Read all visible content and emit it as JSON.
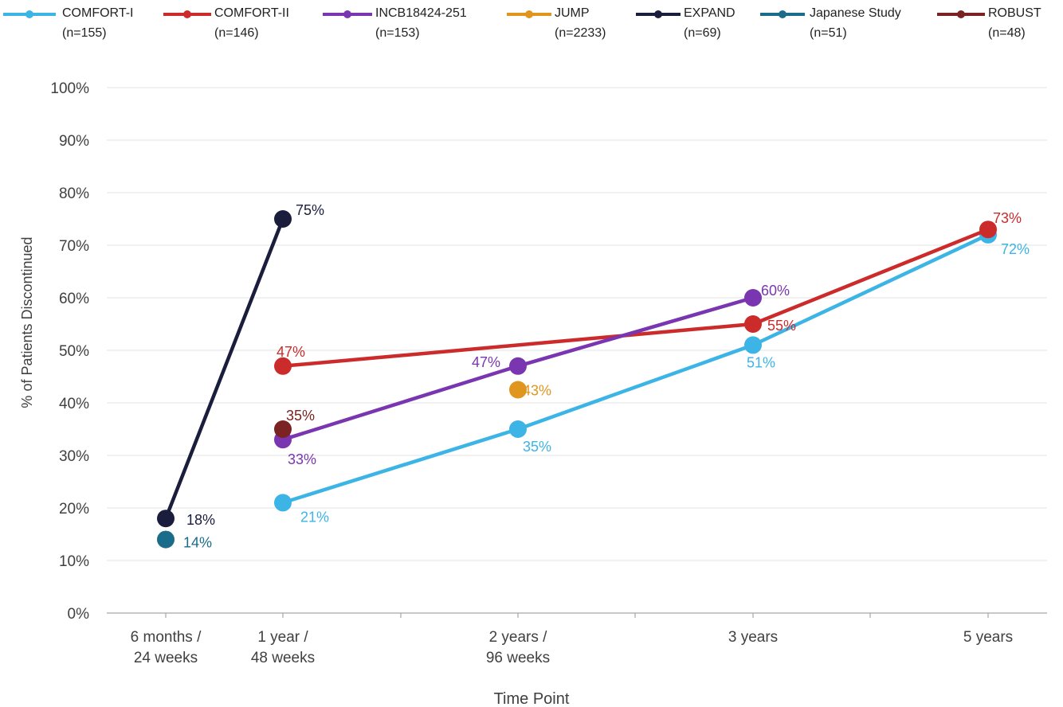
{
  "chart_data": {
    "type": "line",
    "xlabel": "Time Point",
    "ylabel": "% of Patients Discontinued",
    "ylim": [
      0,
      100
    ],
    "yticks": [
      "0%",
      "10%",
      "20%",
      "30%",
      "40%",
      "50%",
      "60%",
      "70%",
      "80%",
      "90%",
      "100%"
    ],
    "categories": [
      {
        "label": [
          "6 months /",
          "24 weeks"
        ],
        "months": 6
      },
      {
        "label": [
          "1 year /",
          "48 weeks"
        ],
        "months": 12
      },
      {
        "label": [
          "2 years /",
          "96 weeks"
        ],
        "months": 24
      },
      {
        "label": [
          "3 years"
        ],
        "months": 36
      },
      {
        "label": [
          "5 years"
        ],
        "months": 60
      }
    ],
    "grid": "horizontal",
    "legend_position": "top",
    "series": [
      {
        "name": "COMFORT-I",
        "n": "(n=155)",
        "color": "#3cb4e6",
        "points": [
          {
            "x": 12,
            "y": 21,
            "label": "21%"
          },
          {
            "x": 24,
            "y": 35,
            "label": "35%"
          },
          {
            "x": 36,
            "y": 51,
            "label": "51%"
          },
          {
            "x": 60,
            "y": 72,
            "label": "72%"
          }
        ]
      },
      {
        "name": "COMFORT-II",
        "n": "(n=146)",
        "color": "#cc2b2b",
        "points": [
          {
            "x": 12,
            "y": 47,
            "label": "47%"
          },
          {
            "x": 36,
            "y": 55,
            "label": "55%"
          },
          {
            "x": 60,
            "y": 73,
            "label": "73%"
          }
        ]
      },
      {
        "name": "INCB18424-251",
        "n": "(n=153)",
        "color": "#7a35b0",
        "points": [
          {
            "x": 12,
            "y": 33,
            "label": "33%"
          },
          {
            "x": 24,
            "y": 47,
            "label": "47%"
          },
          {
            "x": 36,
            "y": 60,
            "label": "60%"
          }
        ]
      },
      {
        "name": "JUMP",
        "n": "(n=2233)",
        "color": "#e0961e",
        "points": [
          {
            "x": 24,
            "y": 42.5,
            "label": "43%"
          }
        ]
      },
      {
        "name": "EXPAND",
        "n": "(n=69)",
        "color": "#1a1d3c",
        "points": [
          {
            "x": 6,
            "y": 18,
            "label": "18%"
          },
          {
            "x": 12,
            "y": 75,
            "label": "75%"
          }
        ]
      },
      {
        "name": "Japanese Study",
        "n": "(n=51)",
        "color": "#1b6b8a",
        "points": [
          {
            "x": 6,
            "y": 14,
            "label": "14%"
          }
        ]
      },
      {
        "name": "ROBUST",
        "n": "(n=48)",
        "color": "#7b2222",
        "points": [
          {
            "x": 12,
            "y": 35,
            "label": "35%"
          }
        ]
      }
    ]
  }
}
